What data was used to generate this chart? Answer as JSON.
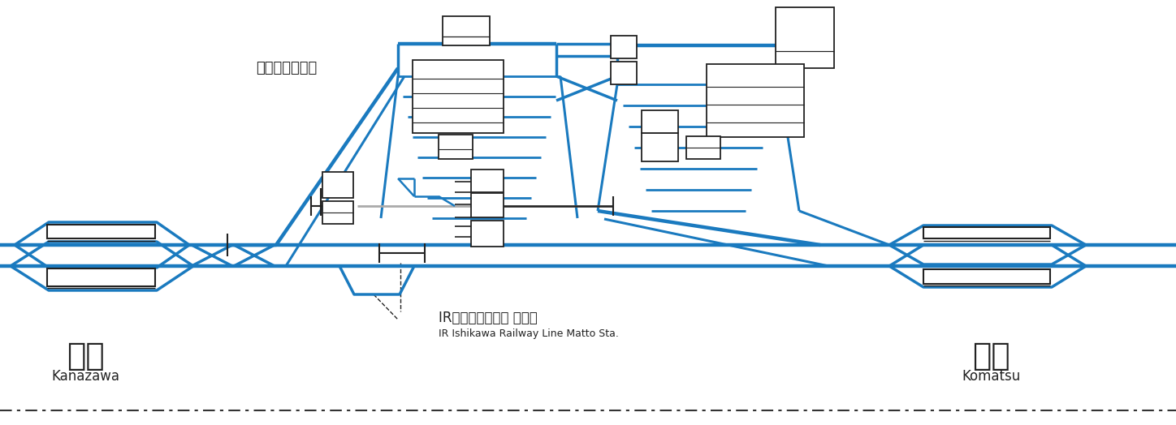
{
  "bg_color": "#ffffff",
  "blue": "#1a7abf",
  "dark": "#222222",
  "gray": "#aaaaaa",
  "title_jp": "白山総合車両所",
  "station_kanazawa_jp": "金沢",
  "station_kanazawa_en": "Kanazawa",
  "station_komatsu_jp": "小松",
  "station_komatsu_en": "Komatsu",
  "matto_jp": "IRいしかわ鉄道線 松任駅",
  "matto_en": "IR Ishikawa Railway Line Matto Sta.",
  "fig_width": 14.48,
  "fig_height": 5.24,
  "dpi": 100
}
